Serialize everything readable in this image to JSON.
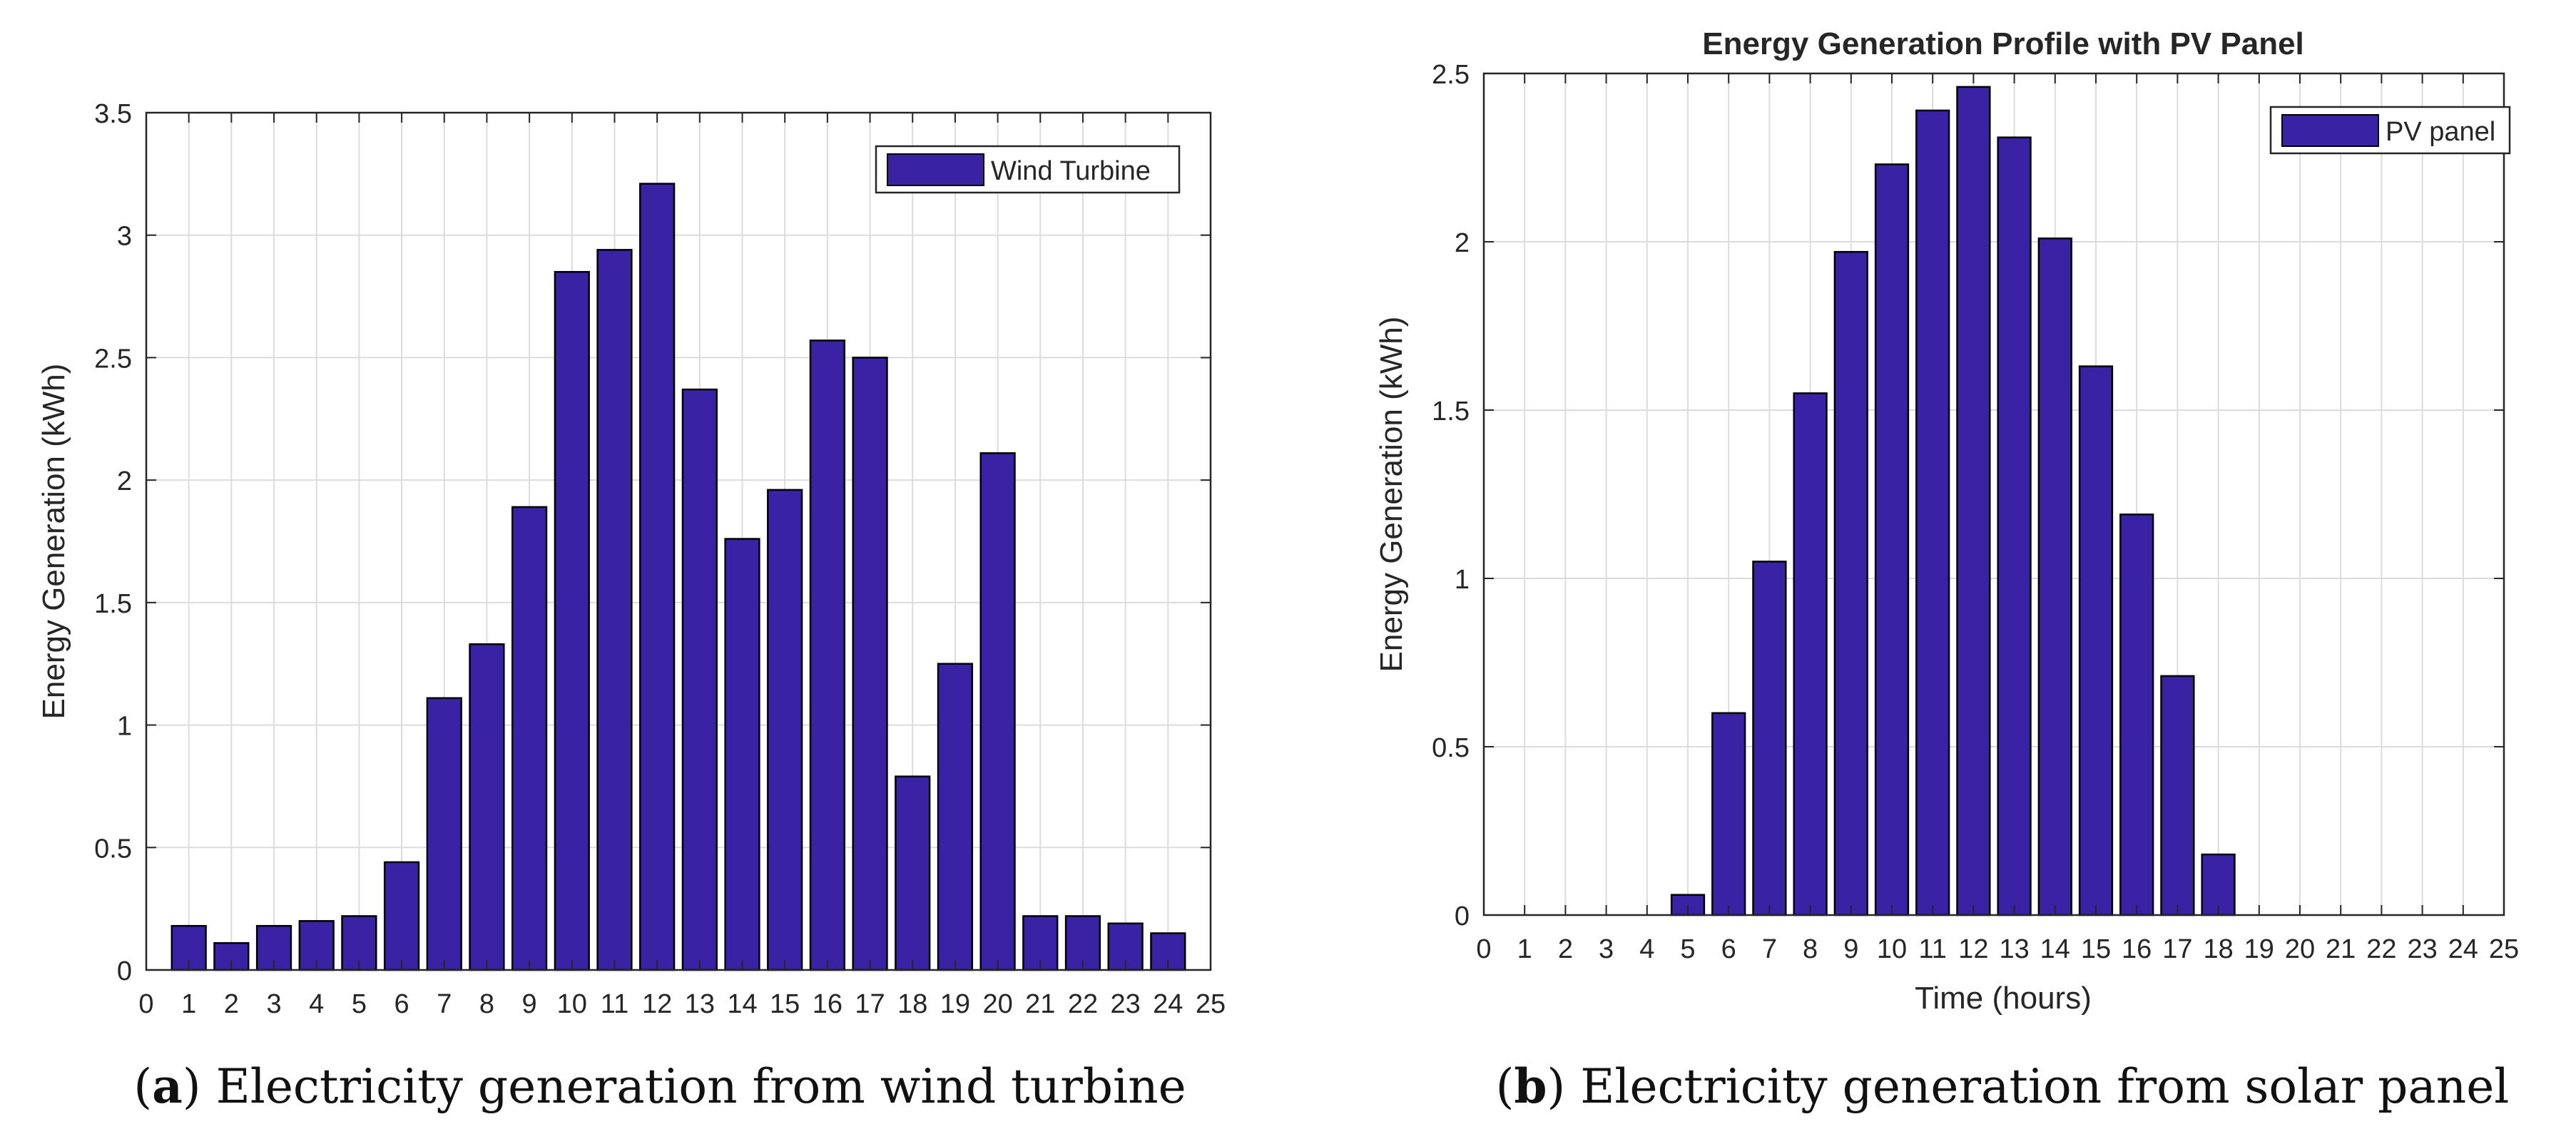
{
  "colors": {
    "bar_fill": "#3a22a5",
    "bar_edge": "#000000",
    "grid": "#dcdcdc",
    "axis": "#262626"
  },
  "chart_data": [
    {
      "type": "bar",
      "title": "",
      "xlabel": "",
      "ylabel": "Energy Generation (kWh)",
      "categories": [
        1,
        2,
        3,
        4,
        5,
        6,
        7,
        8,
        9,
        10,
        11,
        12,
        13,
        14,
        15,
        16,
        17,
        18,
        19,
        20,
        21,
        22,
        23,
        24
      ],
      "series": [
        {
          "name": "Wind Turbine",
          "values": [
            0.18,
            0.11,
            0.18,
            0.2,
            0.22,
            0.44,
            1.11,
            1.33,
            1.89,
            2.85,
            2.94,
            3.21,
            2.37,
            1.76,
            1.96,
            2.57,
            2.5,
            0.79,
            1.25,
            2.11,
            0.22,
            0.22,
            0.19,
            0.15
          ]
        }
      ],
      "xlim": [
        0,
        25
      ],
      "ylim": [
        0,
        3.5
      ],
      "xticks": [
        0,
        1,
        2,
        3,
        4,
        5,
        6,
        7,
        8,
        9,
        10,
        11,
        12,
        13,
        14,
        15,
        16,
        17,
        18,
        19,
        20,
        21,
        22,
        23,
        24,
        25
      ],
      "yticks": [
        0,
        0.5,
        1,
        1.5,
        2,
        2.5,
        3,
        3.5
      ],
      "ytick_labels": [
        "0",
        "0.5",
        "1",
        "1.5",
        "2",
        "2.5",
        "3",
        "3.5"
      ],
      "legend": "top-right",
      "grid": true,
      "caption_letter": "a",
      "caption_text": "Electricity generation from wind turbine"
    },
    {
      "type": "bar",
      "title": "Energy Generation Profile with PV Panel",
      "xlabel": "Time (hours)",
      "ylabel": "Energy Generation (kWh)",
      "categories": [
        1,
        2,
        3,
        4,
        5,
        6,
        7,
        8,
        9,
        10,
        11,
        12,
        13,
        14,
        15,
        16,
        17,
        18,
        19,
        20,
        21,
        22,
        23,
        24
      ],
      "series": [
        {
          "name": "PV panel",
          "values": [
            0,
            0,
            0,
            0,
            0.06,
            0.6,
            1.05,
            1.55,
            1.97,
            2.23,
            2.39,
            2.46,
            2.31,
            2.01,
            1.63,
            1.19,
            0.71,
            0.18,
            0,
            0,
            0,
            0,
            0,
            0
          ]
        }
      ],
      "xlim": [
        0,
        25
      ],
      "ylim": [
        0,
        2.5
      ],
      "xticks": [
        0,
        1,
        2,
        3,
        4,
        5,
        6,
        7,
        8,
        9,
        10,
        11,
        12,
        13,
        14,
        15,
        16,
        17,
        18,
        19,
        20,
        21,
        22,
        23,
        24,
        25
      ],
      "yticks": [
        0,
        0.5,
        1,
        1.5,
        2,
        2.5
      ],
      "ytick_labels": [
        "0",
        "0.5",
        "1",
        "1.5",
        "2",
        "2.5"
      ],
      "legend": "top-right",
      "grid": true,
      "caption_letter": "b",
      "caption_text": "Electricity generation from solar panel"
    }
  ]
}
